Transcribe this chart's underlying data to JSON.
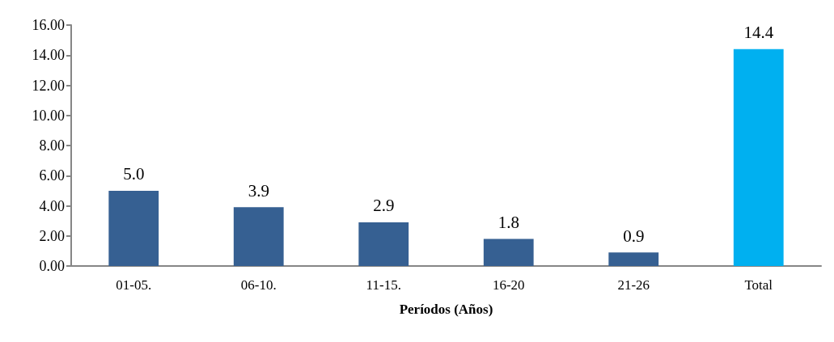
{
  "chart_data": {
    "type": "bar",
    "xlabel": "Períodos (Años)",
    "categories": [
      "01-05.",
      "06-10.",
      "11-15.",
      "16-20",
      "21-26",
      "Total"
    ],
    "values": [
      5.0,
      3.9,
      2.9,
      1.8,
      0.9,
      14.4
    ],
    "colors": [
      "#366092",
      "#366092",
      "#366092",
      "#366092",
      "#366092",
      "#00b0f0"
    ],
    "value_labels": [
      "5.0",
      "3.9",
      "2.9",
      "1.8",
      "0.9",
      "14.4"
    ],
    "ylim": [
      0,
      16
    ],
    "yticks": [
      {
        "value": 0,
        "label": "0.00"
      },
      {
        "value": 2,
        "label": "2.00"
      },
      {
        "value": 4,
        "label": "4.00"
      },
      {
        "value": 6,
        "label": "6.00"
      },
      {
        "value": 8,
        "label": "8.00"
      },
      {
        "value": 10,
        "label": "10.00"
      },
      {
        "value": 12,
        "label": "12.00"
      },
      {
        "value": 14,
        "label": "14.00"
      },
      {
        "value": 16,
        "label": "16.00"
      }
    ],
    "grid": false
  }
}
